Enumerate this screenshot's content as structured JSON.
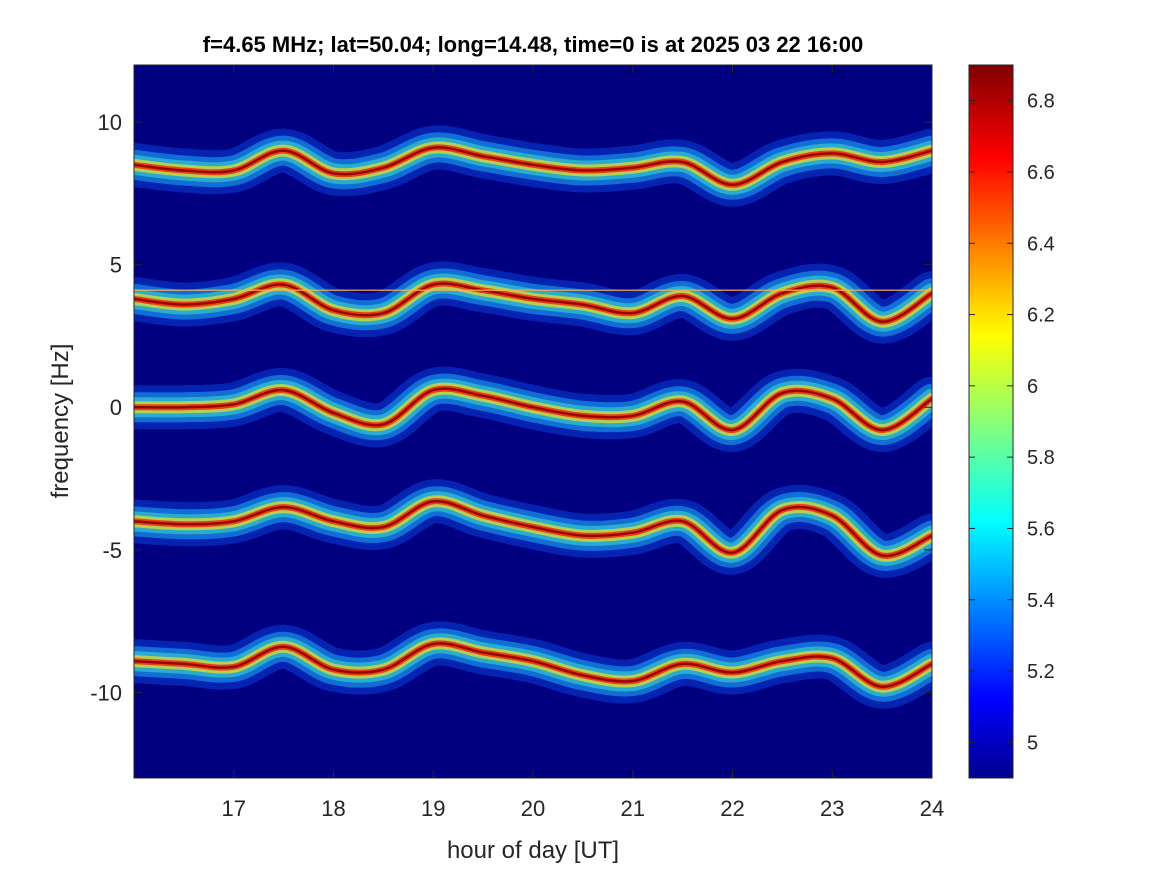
{
  "chart_data": {
    "type": "heatmap",
    "title": "f=4.65 MHz;  lat=50.04; long=14.48, time=0 is at 2025 03 22 16:00",
    "xlabel": "hour of day [UT]",
    "ylabel": "frequency [Hz]",
    "xlim": [
      16.0,
      24.0
    ],
    "ylim": [
      -13.0,
      12.0
    ],
    "xticks": [
      17,
      18,
      19,
      20,
      21,
      22,
      23,
      24
    ],
    "yticks": [
      -10,
      -5,
      0,
      5,
      10
    ],
    "colorbar": {
      "colormap": "jet",
      "clim": [
        4.9,
        6.9
      ],
      "background_value": 4.9,
      "ticks": [
        5,
        5.2,
        5.4,
        5.6,
        5.8,
        6,
        6.2,
        6.4,
        6.6,
        6.8
      ]
    },
    "bands": [
      {
        "name": "",
        "hours": [
          16.0,
          16.5,
          17.0,
          17.5,
          18.0,
          18.5,
          19.0,
          19.5,
          20.0,
          20.5,
          21.0,
          21.5,
          22.0,
          22.5,
          23.0,
          23.5,
          24.0
        ],
        "freq": [
          8.5,
          8.3,
          8.3,
          9.0,
          8.2,
          8.4,
          9.1,
          8.8,
          8.5,
          8.3,
          8.4,
          8.6,
          7.8,
          8.6,
          8.9,
          8.6,
          9.0
        ]
      },
      {
        "name": "",
        "hours": [
          16.0,
          16.5,
          17.0,
          17.5,
          18.0,
          18.5,
          19.0,
          19.5,
          20.0,
          20.5,
          21.0,
          21.5,
          22.0,
          22.5,
          23.0,
          23.5,
          24.0
        ],
        "freq": [
          3.8,
          3.6,
          3.8,
          4.3,
          3.4,
          3.3,
          4.3,
          4.1,
          3.8,
          3.6,
          3.3,
          3.9,
          3.1,
          4.0,
          4.2,
          3.0,
          4.0
        ]
      },
      {
        "name": "",
        "hours": [
          16.0,
          16.5,
          17.0,
          17.5,
          18.0,
          18.5,
          19.0,
          19.5,
          20.0,
          20.5,
          21.0,
          21.5,
          22.0,
          22.5,
          23.0,
          23.5,
          24.0
        ],
        "freq": [
          0.0,
          0.0,
          0.1,
          0.6,
          -0.2,
          -0.6,
          0.6,
          0.4,
          0.0,
          -0.3,
          -0.3,
          0.2,
          -0.8,
          0.5,
          0.3,
          -0.8,
          0.3
        ]
      },
      {
        "name": "",
        "hours": [
          16.0,
          16.5,
          17.0,
          17.5,
          18.0,
          18.5,
          19.0,
          19.5,
          20.0,
          20.5,
          21.0,
          21.5,
          22.0,
          22.5,
          23.0,
          23.5,
          24.0
        ],
        "freq": [
          -4.0,
          -4.1,
          -4.0,
          -3.5,
          -4.0,
          -4.2,
          -3.3,
          -3.8,
          -4.2,
          -4.5,
          -4.4,
          -4.0,
          -5.1,
          -3.6,
          -3.8,
          -5.2,
          -4.5
        ]
      },
      {
        "name": "",
        "hours": [
          16.0,
          16.5,
          17.0,
          17.5,
          18.0,
          18.5,
          19.0,
          19.5,
          20.0,
          20.5,
          21.0,
          21.5,
          22.0,
          22.5,
          23.0,
          23.5,
          24.0
        ],
        "freq": [
          -8.9,
          -9.0,
          -9.1,
          -8.4,
          -9.2,
          -9.2,
          -8.3,
          -8.6,
          -8.9,
          -9.4,
          -9.6,
          -9.0,
          -9.3,
          -8.9,
          -8.8,
          -9.8,
          -9.0
        ]
      }
    ],
    "carrier_line": {
      "freq": 4.1,
      "hours": [
        16.0,
        24.0
      ]
    }
  }
}
